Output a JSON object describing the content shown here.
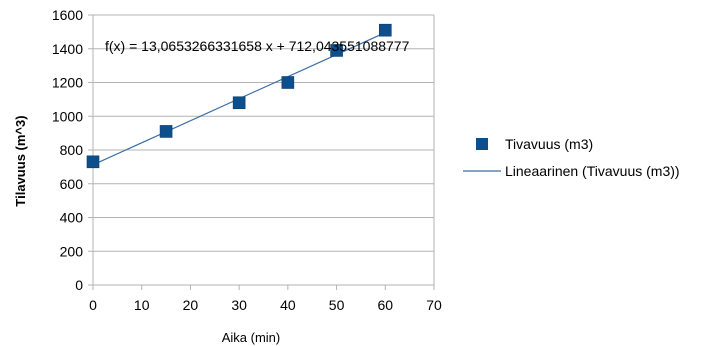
{
  "chart_data": {
    "type": "scatter",
    "xlabel": "Aika (min)",
    "ylabel": "Tilavuus (m^3)",
    "xlim": [
      0,
      70
    ],
    "ylim": [
      0,
      1600
    ],
    "x_ticks": [
      0,
      10,
      20,
      30,
      40,
      50,
      60,
      70
    ],
    "y_ticks": [
      0,
      200,
      400,
      600,
      800,
      1000,
      1200,
      1400,
      1600
    ],
    "grid": true,
    "legend_position": "right",
    "series": [
      {
        "name": "Tivavuus (m3)",
        "x": [
          0,
          15,
          30,
          40,
          50,
          60
        ],
        "y": [
          730,
          910,
          1080,
          1200,
          1390,
          1510
        ],
        "marker": "square",
        "color": "#0d4f8b"
      }
    ],
    "trendline": {
      "name": "Lineaarinen (Tivavuus (m3))",
      "slope": 13.0653266331658,
      "intercept": 712.043551088777,
      "x_range": [
        0,
        60
      ],
      "color": "#3a6ea5",
      "equation": "f(x) = 13,0653266331658 x + 712,043551088777"
    },
    "colors": {
      "grid": "#b3b3b3",
      "axis": "#b3b3b3"
    }
  }
}
